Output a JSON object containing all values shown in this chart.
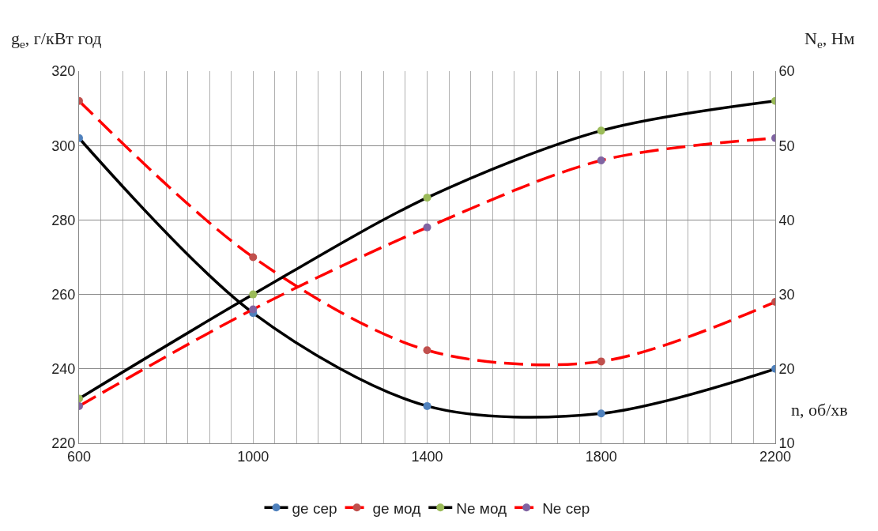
{
  "chart_data": {
    "type": "line",
    "xlabel": "n, об/хв",
    "ylabel": "g$_{e}$, г/кВт год",
    "y2label": "N$_{e}$, Нм",
    "x": [
      600,
      1000,
      1400,
      1800,
      2200
    ],
    "series": [
      {
        "name": "ge сер",
        "color": "#000000",
        "colors": [
          "#4f81bd",
          "#4f81bd",
          "#4f81bd",
          "#4f81bd",
          "#4f81bd"
        ],
        "line_style": "solid",
        "values": [
          302,
          255,
          230,
          228,
          240
        ]
      },
      {
        "name": "ge мод",
        "color": "#ff0000",
        "colors": [
          "#c0504d",
          "#c0504d",
          "#c0504d",
          "#c0504d",
          "#c0504d"
        ],
        "line_style": "dashed",
        "values": [
          312,
          270,
          245,
          242,
          258
        ]
      },
      {
        "name": "Ne мод",
        "color": "#000000",
        "colors": [
          "#9bbb59",
          "#9bbb59",
          "#9bbb59",
          "#9bbb59",
          "#9bbb59"
        ],
        "line_style": "solid",
        "axis": "y2",
        "values": [
          16,
          30,
          43,
          52,
          56
        ]
      },
      {
        "name": "Ne сер",
        "color": "#ff0000",
        "colors": [
          "#8064a2",
          "#8064a2",
          "#8064a2",
          "#8064a2",
          "#8064a2"
        ],
        "line_style": "dashed",
        "axis": "y2",
        "values": [
          15,
          28,
          39,
          48,
          51
        ]
      }
    ],
    "xlim": [
      600,
      2200
    ],
    "xticks": [
      600,
      {
        "value": 650,
        "label": null
      },
      {
        "value": 700,
        "label": null
      },
      {
        "value": 750,
        "label": null
      },
      {
        "value": 800,
        "label": null
      },
      {
        "value": 850,
        "label": null
      },
      {
        "value": 900,
        "label": null
      },
      {
        "value": 950,
        "label": null
      },
      1000,
      {
        "value": 1050,
        "label": null
      },
      {
        "value": 1100,
        "label": null
      },
      {
        "value": 1150,
        "label": null
      },
      {
        "value": 1200,
        "label": null
      },
      {
        "value": 1250,
        "label": null
      },
      {
        "value": 1300,
        "label": null
      },
      {
        "value": 1350,
        "label": null
      },
      1400,
      {
        "value": 1450,
        "label": null
      },
      {
        "value": 1500,
        "label": null
      },
      {
        "value": 1550,
        "label": null
      },
      {
        "value": 1600,
        "label": null
      },
      {
        "value": 1650,
        "label": null
      },
      {
        "value": 1700,
        "label": null
      },
      {
        "value": 1750,
        "label": null
      },
      1800,
      {
        "value": 1850,
        "label": null
      },
      {
        "value": 1900,
        "label": null
      },
      {
        "value": 1950,
        "label": null
      },
      {
        "value": 2000,
        "label": null
      },
      {
        "value": 2050,
        "label": null
      },
      {
        "value": 2100,
        "label": null
      },
      {
        "value": 2150,
        "label": null
      },
      2200
    ],
    "ylim": [
      220,
      320
    ],
    "yticks": [
      220,
      240,
      260,
      280,
      300,
      320
    ],
    "y2lim": [
      10,
      60
    ],
    "y2ticks": [
      10,
      20,
      30,
      40,
      50,
      60
    ],
    "grid": true,
    "legend": "bottom",
    "marker": "circle"
  }
}
